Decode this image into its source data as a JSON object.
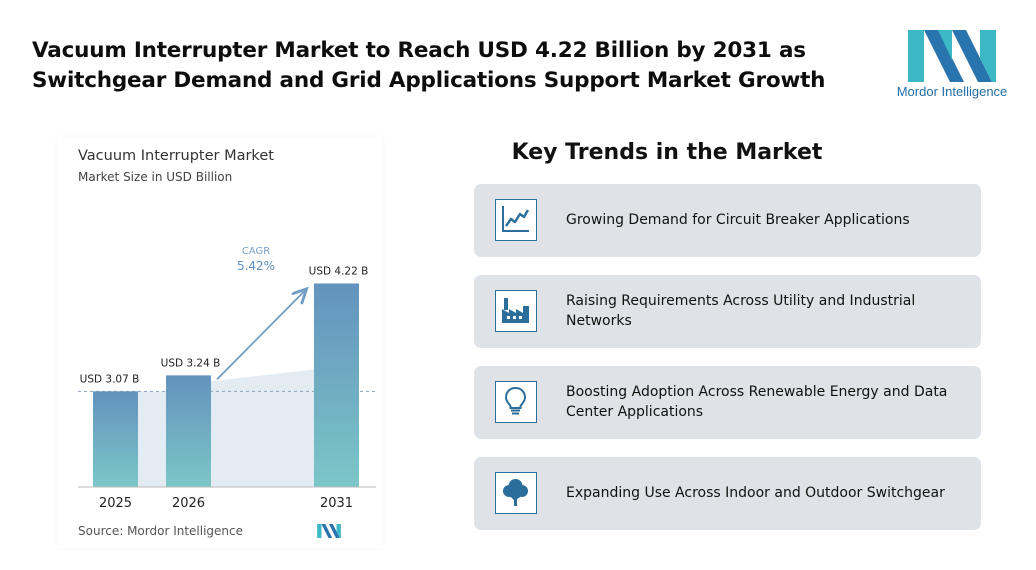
{
  "headline": {
    "line1": "Vacuum Interrupter Market to Reach USD 4.22 Billion by 2031 as",
    "line2": "Switchgear Demand and Grid Applications Support Market Growth"
  },
  "brand": {
    "name": "Mordor Intelligence",
    "colors": {
      "teal": "#3bb9c6",
      "blue": "#2a74ad"
    }
  },
  "chart_data": {
    "type": "bar",
    "title": "Vacuum Interrupter Market",
    "subtitle": "Market Size in USD Billion",
    "categories": [
      "2025",
      "2026",
      "2031"
    ],
    "values": [
      3.07,
      3.24,
      4.22
    ],
    "data_labels": [
      "USD 3.07 B",
      "USD 3.24 B",
      "USD 4.22 B"
    ],
    "annotation": {
      "label": "CAGR",
      "value": "5.42%"
    },
    "source": "Source: Mordor Intelligence",
    "colors": {
      "bar_top": "#6393bd",
      "bar_bottom": "#7cc6c8",
      "band": "#e3ebf3",
      "arrow": "#6f9cc4"
    }
  },
  "trends": {
    "title": "Key Trends in the Market",
    "items": [
      {
        "icon": "line-chart-icon",
        "text": "Growing Demand for Circuit Breaker Applications"
      },
      {
        "icon": "factory-icon",
        "text": "Raising Requirements Across Utility and Industrial Networks"
      },
      {
        "icon": "lightbulb-icon",
        "text": "Boosting Adoption Across Renewable Energy and Data Center Applications"
      },
      {
        "icon": "tree-icon",
        "text": "Expanding Use Across Indoor and Outdoor Switchgear"
      }
    ]
  }
}
